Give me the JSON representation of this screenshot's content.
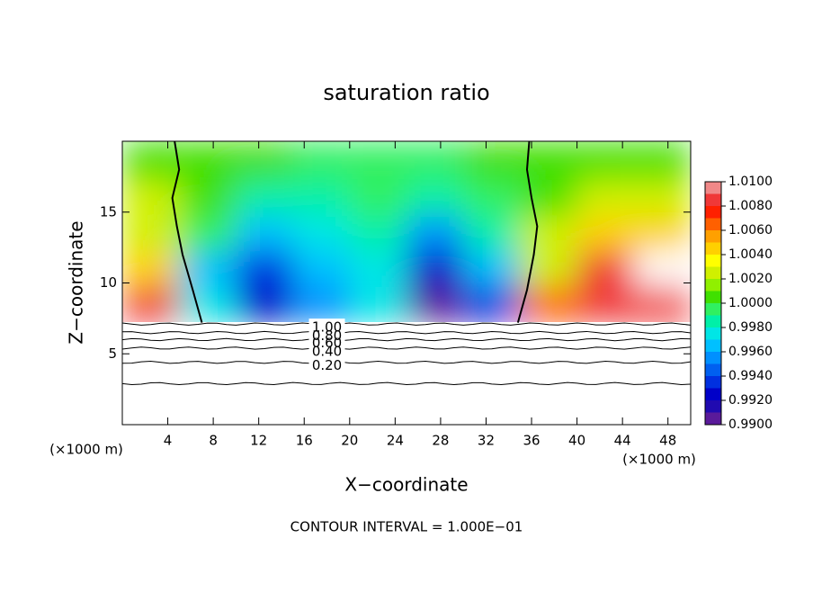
{
  "chart_data": {
    "type": "contour",
    "title": "saturation ratio",
    "xlabel": "X−coordinate",
    "ylabel": "Z−coordinate",
    "unit_label": "(×1000 m)",
    "note": "CONTOUR INTERVAL = 1.000E−01",
    "xlim": [
      0,
      50
    ],
    "xticks": [
      4,
      8,
      12,
      16,
      20,
      24,
      28,
      32,
      36,
      40,
      44,
      48
    ],
    "ylim": [
      0,
      20
    ],
    "yticks": [
      5,
      10,
      15
    ],
    "x": [
      2.5,
      7.5,
      12.5,
      17.5,
      22.5,
      27.5,
      32.5,
      37.5,
      42.5,
      47.5
    ],
    "z": [
      8.5,
      11,
      13.5,
      16,
      18.5
    ],
    "values": [
      [
        1.008,
        0.997,
        0.992,
        0.995,
        0.997,
        0.99,
        0.993,
        1.006,
        1.009,
        1.008
      ],
      [
        1.005,
        0.996,
        0.993,
        0.996,
        0.997,
        0.992,
        0.996,
        1.003,
        1.008,
        1.0105
      ],
      [
        1.003,
        0.999,
        0.996,
        0.997,
        0.998,
        0.995,
        0.998,
        1.002,
        1.004,
        1.005
      ],
      [
        1.002,
        1.0,
        0.998,
        0.998,
        0.999,
        0.998,
        0.999,
        1.001,
        1.002,
        1.002
      ],
      [
        1.001,
        1.0,
        1.0,
        0.999,
        0.999,
        0.999,
        1.0,
        1.001,
        1.001,
        1.001
      ]
    ],
    "colorbar": {
      "ticks": [
        {
          "value": 0.99,
          "label": "0.9900"
        },
        {
          "value": 0.992,
          "label": "0.9920"
        },
        {
          "value": 0.994,
          "label": "0.9940"
        },
        {
          "value": 0.996,
          "label": "0.9960"
        },
        {
          "value": 0.998,
          "label": "0.9980"
        },
        {
          "value": 1.0,
          "label": "1.0000"
        },
        {
          "value": 1.002,
          "label": "1.0020"
        },
        {
          "value": 1.004,
          "label": "1.0040"
        },
        {
          "value": 1.006,
          "label": "1.0060"
        },
        {
          "value": 1.008,
          "label": "1.0080"
        },
        {
          "value": 1.01,
          "label": "1.0100"
        }
      ],
      "colors": [
        "#5a1a9a",
        "#200ab0",
        "#0000c8",
        "#0030e0",
        "#0060f0",
        "#0090ff",
        "#00c0ff",
        "#00e6e6",
        "#00f0a8",
        "#30f060",
        "#40e000",
        "#90f000",
        "#d0f000",
        "#ffff00",
        "#ffd000",
        "#ffa000",
        "#ff6000",
        "#ff2000",
        "#f03838",
        "#f08888"
      ]
    },
    "contours": [
      {
        "z": 2.9
      },
      {
        "z": 4.4,
        "label": "0.20"
      },
      {
        "z": 5.4,
        "label": "0.40"
      },
      {
        "z": 6.0,
        "label": "0.60"
      },
      {
        "z": 6.5,
        "label": "0.80"
      },
      {
        "z": 7.1,
        "label": "1.00"
      }
    ],
    "unit_contours": [
      {
        "x": [
          4.6,
          5.0,
          4.4,
          4.8,
          5.3,
          6.2,
          7.0
        ],
        "z": [
          20,
          18,
          16,
          14,
          12,
          9.5,
          7.2
        ]
      },
      {
        "x": [
          35.8,
          35.6,
          36.0,
          36.5,
          36.2,
          35.6,
          34.8
        ],
        "z": [
          20,
          18,
          16,
          14,
          12,
          9.5,
          7.2
        ]
      }
    ]
  }
}
